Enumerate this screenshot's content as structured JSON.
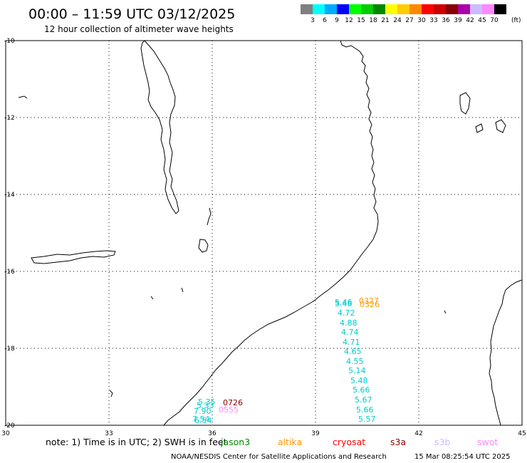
{
  "header": {
    "title": "00:00 – 11:59 UTC 03/12/2025",
    "subtitle": "12 hour collection of altimeter wave heights"
  },
  "colorbar": {
    "unit": "(ft)",
    "swatches": [
      {
        "color": "#808080",
        "label": "3"
      },
      {
        "color": "#00ffff",
        "label": "6"
      },
      {
        "color": "#00aaff",
        "label": "9"
      },
      {
        "color": "#0000ff",
        "label": "12"
      },
      {
        "color": "#00ff00",
        "label": "15"
      },
      {
        "color": "#00cc00",
        "label": "18"
      },
      {
        "color": "#008800",
        "label": "21"
      },
      {
        "color": "#ffff00",
        "label": "24"
      },
      {
        "color": "#ffcc00",
        "label": "27"
      },
      {
        "color": "#ff8800",
        "label": "30"
      },
      {
        "color": "#ff0000",
        "label": "33"
      },
      {
        "color": "#cc0000",
        "label": "36"
      },
      {
        "color": "#880000",
        "label": "39"
      },
      {
        "color": "#aa00aa",
        "label": "42"
      },
      {
        "color": "#ccbbff",
        "label": "45"
      },
      {
        "color": "#ff88ff",
        "label": "70"
      },
      {
        "color": "#000000",
        "label": ""
      }
    ]
  },
  "map": {
    "lon_range": [
      30,
      45
    ],
    "lat_range": [
      -20,
      -10
    ],
    "lon_ticks": [
      "30",
      "33",
      "36",
      "39",
      "42",
      "45"
    ],
    "lat_ticks": [
      "-10",
      "-12",
      "-14",
      "-16",
      "-18",
      "-20"
    ],
    "grid": "dotted"
  },
  "observations": [
    {
      "text": "5.46",
      "color": "#00cccc"
    },
    {
      "text": "5.48",
      "color": "#00cccc"
    },
    {
      "text": "4.72",
      "color": "#00cccc"
    },
    {
      "text": "4.88",
      "color": "#00cccc"
    },
    {
      "text": "4.74",
      "color": "#00cccc"
    },
    {
      "text": "4.71",
      "color": "#00cccc"
    },
    {
      "text": "4.65",
      "color": "#00cccc"
    },
    {
      "text": "4.55",
      "color": "#00cccc"
    },
    {
      "text": "5.14",
      "color": "#00cccc"
    },
    {
      "text": "5.48",
      "color": "#00cccc"
    },
    {
      "text": "5.66",
      "color": "#00cccc"
    },
    {
      "text": "5.67",
      "color": "#00cccc"
    },
    {
      "text": "5.66",
      "color": "#00cccc"
    },
    {
      "text": "5.57",
      "color": "#00cccc"
    },
    {
      "text": "0327",
      "color": "#ff9900"
    },
    {
      "text": "0326",
      "color": "#ff9900"
    },
    {
      "text": "5.35",
      "color": "#00cccc"
    },
    {
      "text": "5.33",
      "color": "#00cccc"
    },
    {
      "text": "7.90",
      "color": "#00cccc"
    },
    {
      "text": "7.54",
      "color": "#00cccc"
    },
    {
      "text": "6.54",
      "color": "#00cccc"
    },
    {
      "text": "0726",
      "color": "#880000"
    },
    {
      "text": "0555",
      "color": "#ff88ff"
    }
  ],
  "footer": {
    "note": "note: 1) Time is in UTC; 2) SWH is in feet",
    "satellites": [
      {
        "name": "jason3",
        "color": "#008800"
      },
      {
        "name": "altika",
        "color": "#ff9900"
      },
      {
        "name": "cryosat",
        "color": "#ff0000"
      },
      {
        "name": "s3a",
        "color": "#880000"
      },
      {
        "name": "s3b",
        "color": "#ccbbff"
      },
      {
        "name": "swot",
        "color": "#ff88ff"
      }
    ],
    "credit": "NOAA/NESDIS Center for Satellite Applications and Research",
    "timestamp": "15 Mar 08:25:54 UTC 2025"
  }
}
